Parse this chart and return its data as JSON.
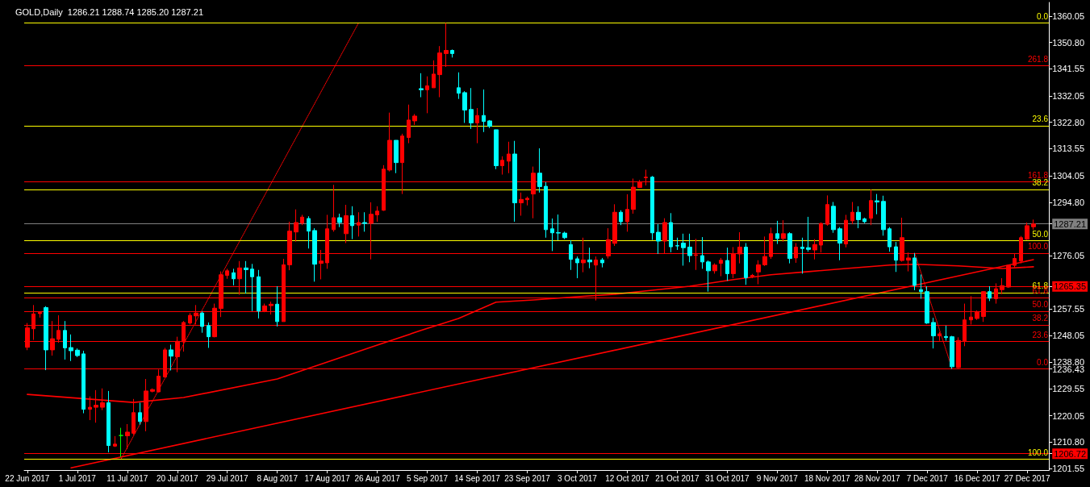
{
  "chart_data": {
    "type": "candlestick",
    "title": "GOLD,Daily  1286.21 1288.74 1285.20 1287.21",
    "categories": [
      "22 Jun 2017",
      null,
      null,
      null,
      null,
      null,
      null,
      null,
      "1 Jul 2017",
      null,
      null,
      null,
      null,
      null,
      null,
      null,
      "11 Jul 2017",
      null,
      null,
      null,
      null,
      null,
      null,
      null,
      "20 Jul 2017",
      null,
      null,
      null,
      null,
      null,
      null,
      null,
      "29 Jul 2017",
      null,
      null,
      null,
      null,
      null,
      null,
      null,
      "8 Aug 2017",
      null,
      null,
      null,
      null,
      null,
      null,
      null,
      "17 Aug 2017",
      null,
      null,
      null,
      null,
      null,
      null,
      null,
      "26 Aug 2017",
      null,
      null,
      null,
      null,
      null,
      null,
      null,
      "5 Sep 2017",
      null,
      null,
      null,
      null,
      null,
      null,
      null,
      "14 Sep 2017",
      null,
      null,
      null,
      null,
      null,
      null,
      null,
      "23 Sep 2017",
      null,
      null,
      null,
      null,
      null,
      null,
      null,
      "3 Oct 2017",
      null,
      null,
      null,
      null,
      null,
      null,
      null,
      "12 Oct 2017",
      null,
      null,
      null,
      null,
      null,
      null,
      null,
      "21 Oct 2017",
      null,
      null,
      null,
      null,
      null,
      null,
      null,
      "31 Oct 2017",
      null,
      null,
      null,
      null,
      null,
      null,
      null,
      "9 Nov 2017",
      null,
      null,
      null,
      null,
      null,
      null,
      null,
      "18 Nov 2017",
      null,
      null,
      null,
      null,
      null,
      null,
      null,
      "28 Nov 2017",
      null,
      null,
      null,
      null,
      null,
      null,
      null,
      "7 Dec 2017",
      null,
      null,
      null,
      null,
      null,
      null,
      null,
      "16 Dec 2017",
      null,
      null,
      null,
      null,
      null,
      null,
      null,
      "27 Dec 2017",
      null
    ],
    "ohlc": [
      [
        1244.0,
        1252.5,
        1243.0,
        1250.8
      ],
      [
        1250.5,
        1258.8,
        1246.6,
        1255.7
      ],
      [
        1255.8,
        1256.6,
        1254.4,
        1256.2
      ],
      [
        1257.9,
        1258.4,
        1236.0,
        1243.1
      ],
      [
        1243.1,
        1253.2,
        1241.1,
        1247.0
      ],
      [
        1246.8,
        1255.2,
        1245.6,
        1249.9
      ],
      [
        1249.9,
        1253.2,
        1239.7,
        1243.8
      ],
      [
        1243.9,
        1248.5,
        1239.2,
        1242.8
      ],
      [
        1243.0,
        1243.6,
        1240.6,
        1241.1
      ],
      [
        1241.7,
        1242.8,
        1220.9,
        1222.3
      ],
      [
        1222.3,
        1226.8,
        1218.5,
        1223.0
      ],
      [
        1223.0,
        1229.0,
        1217.6,
        1223.7
      ],
      [
        1223.0,
        1229.6,
        1222.0,
        1224.6
      ],
      [
        1224.6,
        1228.7,
        1207.2,
        1209.6
      ],
      [
        1209.4,
        1212.9,
        1209.1,
        1210.1
      ],
      [
        1213.1,
        1215.8,
        1205.6,
        1213.1
      ],
      [
        1213.0,
        1217.1,
        1208.3,
        1214.3
      ],
      [
        1213.9,
        1225.9,
        1213.3,
        1221.1
      ],
      [
        1221.1,
        1224.6,
        1216.9,
        1218.0
      ],
      [
        1218.0,
        1232.9,
        1214.6,
        1228.7
      ],
      [
        1228.6,
        1229.6,
        1228.2,
        1229.2
      ],
      [
        1228.4,
        1236.2,
        1228.2,
        1233.9
      ],
      [
        1233.6,
        1243.8,
        1233.4,
        1243.1
      ],
      [
        1243.1,
        1244.9,
        1235.9,
        1240.9
      ],
      [
        1240.7,
        1247.7,
        1235.3,
        1246.1
      ],
      [
        1245.9,
        1253.2,
        1242.5,
        1252.7
      ],
      [
        1252.5,
        1256.0,
        1252.0,
        1255.2
      ],
      [
        1255.0,
        1258.8,
        1252.0,
        1256.0
      ],
      [
        1256.0,
        1256.6,
        1249.1,
        1251.3
      ],
      [
        1251.6,
        1252.7,
        1243.8,
        1247.7
      ],
      [
        1247.7,
        1259.3,
        1247.5,
        1257.7
      ],
      [
        1257.6,
        1270.6,
        1254.6,
        1269.4
      ],
      [
        1269.2,
        1271.5,
        1268.0,
        1270.8
      ],
      [
        1270.1,
        1271.5,
        1265.7,
        1268.0
      ],
      [
        1268.0,
        1274.2,
        1262.4,
        1271.8
      ],
      [
        1271.8,
        1274.2,
        1262.8,
        1271.2
      ],
      [
        1271.4,
        1273.2,
        1256.7,
        1268.7
      ],
      [
        1268.7,
        1271.1,
        1254.1,
        1256.7
      ],
      [
        1256.7,
        1259.3,
        1256.3,
        1258.5
      ],
      [
        1258.6,
        1260.0,
        1255.5,
        1259.1
      ],
      [
        1259.1,
        1265.4,
        1251.3,
        1253.0
      ],
      [
        1253.0,
        1275.0,
        1253.0,
        1272.9
      ],
      [
        1272.9,
        1288.0,
        1271.0,
        1284.7
      ],
      [
        1284.4,
        1292.3,
        1281.0,
        1287.7
      ],
      [
        1287.5,
        1290.4,
        1286.8,
        1289.6
      ],
      [
        1289.1,
        1289.9,
        1278.6,
        1284.7
      ],
      [
        1284.9,
        1285.7,
        1267.0,
        1273.1
      ],
      [
        1273.4,
        1278.1,
        1267.8,
        1274.2
      ],
      [
        1273.6,
        1290.4,
        1271.5,
        1285.5
      ],
      [
        1285.2,
        1300.9,
        1284.5,
        1289.4
      ],
      [
        1289.4,
        1290.8,
        1286.1,
        1287.7
      ],
      [
        1283.8,
        1293.9,
        1280.5,
        1290.1
      ],
      [
        1290.1,
        1293.4,
        1281.9,
        1286.6
      ],
      [
        1286.8,
        1291.3,
        1282.8,
        1287.7
      ],
      [
        1287.7,
        1291.3,
        1284.5,
        1287.4
      ],
      [
        1287.4,
        1294.8,
        1274.8,
        1290.6
      ],
      [
        1290.4,
        1293.4,
        1288.0,
        1291.7
      ],
      [
        1292.0,
        1307.8,
        1291.8,
        1306.4
      ],
      [
        1306.1,
        1326.2,
        1305.6,
        1316.5
      ],
      [
        1316.5,
        1316.5,
        1305.0,
        1308.7
      ],
      [
        1308.7,
        1318.8,
        1297.7,
        1318.0
      ],
      [
        1317.5,
        1329.0,
        1315.5,
        1323.6
      ],
      [
        1323.3,
        1325.7,
        1321.9,
        1325.0
      ],
      [
        1334.6,
        1340.0,
        1331.6,
        1334.2
      ],
      [
        1334.2,
        1338.9,
        1326.0,
        1335.6
      ],
      [
        1334.9,
        1344.5,
        1334.9,
        1339.7
      ],
      [
        1339.5,
        1349.5,
        1331.6,
        1347.1
      ],
      [
        1346.9,
        1357.6,
        1342.2,
        1348.0
      ],
      [
        1348.0,
        1348.3,
        1345.5,
        1346.9
      ],
      [
        1334.9,
        1340.3,
        1331.0,
        1333.0
      ],
      [
        1333.2,
        1333.7,
        1322.6,
        1327.1
      ],
      [
        1327.3,
        1334.8,
        1320.5,
        1322.6
      ],
      [
        1322.6,
        1327.8,
        1315.5,
        1325.2
      ],
      [
        1325.2,
        1334.3,
        1319.4,
        1323.1
      ],
      [
        1323.3,
        1323.6,
        1320.8,
        1321.4
      ],
      [
        1320.2,
        1320.2,
        1306.4,
        1307.6
      ],
      [
        1307.6,
        1310.9,
        1304.5,
        1309.5
      ],
      [
        1309.2,
        1316.0,
        1305.0,
        1311.7
      ],
      [
        1311.7,
        1316.3,
        1288.0,
        1294.6
      ],
      [
        1294.6,
        1298.2,
        1290.1,
        1295.8
      ],
      [
        1295.7,
        1296.8,
        1293.7,
        1296.2
      ],
      [
        1297.7,
        1307.3,
        1289.2,
        1305.0
      ],
      [
        1305.0,
        1313.7,
        1298.2,
        1300.3
      ],
      [
        1300.4,
        1301.9,
        1282.4,
        1285.2
      ],
      [
        1285.5,
        1289.1,
        1277.7,
        1284.1
      ],
      [
        1284.2,
        1290.5,
        1281.5,
        1284.0
      ],
      [
        1284.0,
        1284.5,
        1281.9,
        1282.4
      ],
      [
        1280.0,
        1281.5,
        1271.1,
        1274.8
      ],
      [
        1275.0,
        1275.8,
        1268.2,
        1273.6
      ],
      [
        1273.6,
        1282.4,
        1270.3,
        1274.6
      ],
      [
        1274.6,
        1278.9,
        1271.7,
        1273.9
      ],
      [
        1272.8,
        1275.8,
        1260.4,
        1274.6
      ],
      [
        1274.6,
        1275.3,
        1272.0,
        1273.6
      ],
      [
        1276.0,
        1285.7,
        1275.1,
        1281.7
      ],
      [
        1280.4,
        1294.1,
        1279.5,
        1291.3
      ],
      [
        1291.3,
        1292.0,
        1286.8,
        1288.0
      ],
      [
        1288.0,
        1297.6,
        1284.5,
        1292.3
      ],
      [
        1292.3,
        1303.1,
        1290.8,
        1300.1
      ],
      [
        1300.0,
        1302.6,
        1299.8,
        1301.9
      ],
      [
        1303.4,
        1306.2,
        1300.7,
        1303.6
      ],
      [
        1303.6,
        1304.0,
        1281.6,
        1284.1
      ],
      [
        1284.3,
        1287.1,
        1276.7,
        1281.2
      ],
      [
        1281.2,
        1289.2,
        1276.7,
        1287.7
      ],
      [
        1287.7,
        1291.0,
        1277.3,
        1279.2
      ],
      [
        1279.6,
        1282.4,
        1278.1,
        1279.5
      ],
      [
        1280.5,
        1283.8,
        1272.6,
        1278.9
      ],
      [
        1279.1,
        1283.8,
        1273.8,
        1276.1
      ],
      [
        1276.2,
        1282.0,
        1271.1,
        1276.4
      ],
      [
        1276.1,
        1282.6,
        1271.5,
        1273.9
      ],
      [
        1273.9,
        1274.4,
        1263.5,
        1270.8
      ],
      [
        1270.8,
        1273.4,
        1269.8,
        1272.8
      ],
      [
        1273.4,
        1275.3,
        1268.9,
        1274.5
      ],
      [
        1274.4,
        1278.9,
        1267.3,
        1269.8
      ],
      [
        1269.8,
        1279.1,
        1268.2,
        1276.7
      ],
      [
        1276.7,
        1284.3,
        1273.4,
        1279.1
      ],
      [
        1279.1,
        1280.5,
        1265.9,
        1268.4
      ],
      [
        1268.7,
        1269.7,
        1268.2,
        1269.2
      ],
      [
        1270.4,
        1274.5,
        1266.1,
        1272.9
      ],
      [
        1272.9,
        1282.8,
        1272.5,
        1275.8
      ],
      [
        1275.8,
        1285.9,
        1275.0,
        1283.8
      ],
      [
        1283.8,
        1288.3,
        1280.2,
        1282.1
      ],
      [
        1282.1,
        1288.5,
        1281.0,
        1283.8
      ],
      [
        1283.8,
        1284.3,
        1273.4,
        1275.1
      ],
      [
        1275.3,
        1280.5,
        1273.6,
        1279.1
      ],
      [
        1279.1,
        1282.4,
        1269.8,
        1278.6
      ],
      [
        1278.9,
        1289.7,
        1277.5,
        1278.3
      ],
      [
        1278.1,
        1281.9,
        1274.8,
        1280.0
      ],
      [
        1279.8,
        1287.7,
        1277.2,
        1287.4
      ],
      [
        1287.1,
        1297.2,
        1286.6,
        1294.0
      ],
      [
        1293.4,
        1294.9,
        1284.1,
        1285.2
      ],
      [
        1285.5,
        1286.1,
        1274.5,
        1280.5
      ],
      [
        1280.2,
        1290.4,
        1279.0,
        1288.5
      ],
      [
        1288.3,
        1294.9,
        1287.1,
        1291.3
      ],
      [
        1291.3,
        1293.4,
        1285.7,
        1288.7
      ],
      [
        1289.0,
        1289.4,
        1287.5,
        1288.0
      ],
      [
        1289.2,
        1299.3,
        1286.8,
        1295.4
      ],
      [
        1295.3,
        1297.7,
        1290.6,
        1294.9
      ],
      [
        1295.1,
        1297.1,
        1283.1,
        1285.2
      ],
      [
        1285.5,
        1286.1,
        1277.5,
        1279.2
      ],
      [
        1279.2,
        1280.9,
        1270.4,
        1274.5
      ],
      [
        1274.4,
        1289.4,
        1274.0,
        1282.4
      ],
      [
        1274.5,
        1277.2,
        1270.6,
        1275.3
      ],
      [
        1275.3,
        1277.0,
        1264.0,
        1265.7
      ],
      [
        1264.2,
        1269.5,
        1261.0,
        1263.5
      ],
      [
        1263.5,
        1265.4,
        1252.2,
        1252.5
      ],
      [
        1252.7,
        1254.3,
        1243.6,
        1248.0
      ],
      [
        1248.0,
        1249.4,
        1246.3,
        1248.7
      ],
      [
        1247.8,
        1251.6,
        1246.3,
        1247.4
      ],
      [
        1247.7,
        1248.0,
        1236.43,
        1237.2
      ],
      [
        1236.9,
        1247.5,
        1236.7,
        1246.4
      ],
      [
        1246.1,
        1259.3,
        1244.4,
        1253.6
      ],
      [
        1253.6,
        1261.9,
        1252.0,
        1254.6
      ],
      [
        1254.1,
        1256.9,
        1253.6,
        1256.5
      ],
      [
        1254.8,
        1263.7,
        1252.9,
        1263.5
      ],
      [
        1263.5,
        1265.4,
        1260.2,
        1261.2
      ],
      [
        1261.0,
        1266.4,
        1259.3,
        1264.5
      ],
      [
        1264.2,
        1268.2,
        1262.6,
        1265.6
      ],
      [
        1265.1,
        1272.9,
        1264.8,
        1272.7
      ],
      [
        1272.7,
        1276.7,
        1272.0,
        1275.1
      ],
      [
        1274.2,
        1283.0,
        1273.4,
        1282.4
      ],
      [
        1281.9,
        1287.7,
        1281.6,
        1286.6
      ],
      [
        1286.21,
        1288.74,
        1285.2,
        1287.21
      ]
    ],
    "colors": [
      "#ff0000",
      "#ff0000",
      "#ff0000",
      "#00ffff",
      "#ff0000",
      "#ff0000",
      "#00ffff",
      "#00ffff",
      "#00ffff",
      "#00ffff",
      "#ff0000",
      "#ff0000",
      "#ff0000",
      "#00ffff",
      "#ff0000",
      "#00ff00",
      "#ff0000",
      "#ff0000",
      "#00ffff",
      "#ff0000",
      "#ff0000",
      "#ff0000",
      "#ff0000",
      "#00ffff",
      "#ff0000",
      "#ff0000",
      "#ff0000",
      "#ff0000",
      "#00ffff",
      "#00ffff",
      "#ff0000",
      "#ff0000",
      "#ff0000",
      "#00ffff",
      "#ff0000",
      "#00ffff",
      "#00ffff",
      "#00ffff",
      "#ff0000",
      "#ff0000",
      "#00ffff",
      "#ff0000",
      "#ff0000",
      "#ff0000",
      "#ff0000",
      "#00ffff",
      "#00ffff",
      "#ff0000",
      "#ff0000",
      "#ff0000",
      "#00ffff",
      "#ff0000",
      "#00ffff",
      "#ff0000",
      "#00ffff",
      "#ff0000",
      "#ff0000",
      "#ff0000",
      "#ff0000",
      "#00ffff",
      "#ff0000",
      "#ff0000",
      "#ff0000",
      "#00ffff",
      "#ff0000",
      "#ff0000",
      "#ff0000",
      "#ff0000",
      "#00ffff",
      "#00ffff",
      "#00ffff",
      "#00ffff",
      "#ff0000",
      "#00ffff",
      "#00ffff",
      "#00ffff",
      "#ff0000",
      "#ff0000",
      "#00ffff",
      "#ff0000",
      "#ff0000",
      "#ff0000",
      "#00ffff",
      "#00ffff",
      "#00ffff",
      "#00ffff",
      "#00ffff",
      "#00ffff",
      "#00ffff",
      "#ff0000",
      "#00ffff",
      "#ff0000",
      "#00ffff",
      "#ff0000",
      "#ff0000",
      "#00ffff",
      "#ff0000",
      "#ff0000",
      "#ff0000",
      "#ff0000",
      "#00ffff",
      "#00ffff",
      "#ff0000",
      "#00ffff",
      "#00ffff",
      "#00ffff",
      "#00ffff",
      "#ff0000",
      "#00ffff",
      "#00ffff",
      "#ff0000",
      "#ff0000",
      "#00ffff",
      "#ff0000",
      "#ff0000",
      "#00ffff",
      "#ff0000",
      "#ff0000",
      "#ff0000",
      "#ff0000",
      "#00ffff",
      "#ff0000",
      "#00ffff",
      "#ff0000",
      "#00ffff",
      "#00ffff",
      "#ff0000",
      "#ff0000",
      "#ff0000",
      "#00ffff",
      "#00ffff",
      "#ff0000",
      "#ff0000",
      "#00ffff",
      "#00ffff",
      "#ff0000",
      "#00ffff",
      "#00ffff",
      "#00ffff",
      "#00ffff",
      "#ff0000",
      "#ff0000",
      "#00ffff",
      "#00ffff",
      "#00ffff",
      "#00ffff",
      "#ff0000",
      "#00ffff",
      "#00ffff",
      "#ff0000",
      "#ff0000",
      "#ff0000",
      "#ff0000",
      "#ff0000",
      "#00ffff",
      "#ff0000",
      "#ff0000",
      "#ff0000",
      "#ff0000",
      "#ff0000",
      "#ff0000",
      "#ff0000"
    ],
    "series": [
      {
        "type": "line",
        "color": "#ff0000",
        "line_style": "solid",
        "values": [
          1227.5,
          null,
          null,
          null,
          null,
          null,
          null,
          null,
          null,
          null,
          null,
          null,
          null,
          null,
          null,
          null,
          null,
          1224.7,
          null,
          null,
          null,
          null,
          null,
          null,
          null,
          1226.4,
          null,
          null,
          null,
          null,
          null,
          null,
          null,
          null,
          null,
          null,
          null,
          null,
          null,
          null,
          1232.9,
          null,
          null,
          null,
          null,
          null,
          null,
          null,
          null,
          null,
          null,
          null,
          null,
          null,
          null,
          null,
          1244.8,
          null,
          null,
          null,
          null,
          null,
          null,
          1249.9,
          null,
          null,
          null,
          null,
          null,
          1254.1,
          null,
          null,
          null,
          null,
          null,
          1259.8,
          null,
          null,
          null,
          null,
          null,
          1260.6,
          null,
          null,
          null,
          null,
          null,
          null,
          1261.7,
          null,
          null,
          null,
          null,
          null,
          1262.6,
          null,
          null,
          null,
          null,
          null,
          1264.0,
          null,
          null,
          null,
          null,
          null,
          1265.4,
          null,
          null,
          null,
          null,
          null,
          null,
          1267.7,
          null,
          null,
          null,
          null,
          null,
          1269.4,
          null,
          null,
          null,
          null,
          null,
          1270.5,
          null,
          null,
          null,
          null,
          null,
          1271.6,
          null,
          null,
          null,
          null,
          null,
          null,
          1272.8,
          null,
          null,
          null,
          1273.1,
          null,
          null,
          null,
          null,
          null,
          null,
          1272.5,
          null,
          null,
          null,
          null,
          null,
          null,
          1271.6,
          null,
          null,
          null,
          null,
          1272.2
        ]
      },
      {
        "type": "line",
        "color": "#ff0000",
        "line_style": "solid",
        "values": [
          null,
          null,
          null,
          null,
          null,
          null,
          null,
          1201.8,
          null,
          null,
          null,
          null,
          null,
          null,
          null,
          null,
          null,
          null,
          null,
          null,
          null,
          null,
          null,
          null,
          null,
          null,
          null,
          null,
          null,
          null,
          null,
          null,
          null,
          null,
          null,
          null,
          null,
          null,
          null,
          null,
          null,
          null,
          null,
          null,
          null,
          null,
          null,
          null,
          null,
          null,
          null,
          null,
          null,
          null,
          null,
          null,
          null,
          null,
          null,
          null,
          null,
          null,
          null,
          null,
          null,
          null,
          null,
          null,
          null,
          null,
          null,
          null,
          null,
          null,
          null,
          null,
          null,
          null,
          null,
          null,
          null,
          null,
          null,
          null,
          null,
          null,
          null,
          null,
          null,
          null,
          null,
          null,
          null,
          null,
          null,
          null,
          null,
          null,
          null,
          null,
          null,
          null,
          null,
          null,
          null,
          null,
          null,
          null,
          null,
          null,
          null,
          null,
          null,
          null,
          null,
          null,
          null,
          null,
          null,
          null,
          null,
          null,
          null,
          null,
          null,
          null,
          null,
          null,
          null,
          null,
          null,
          null,
          null,
          null,
          null,
          null,
          null,
          null,
          null,
          null,
          null,
          null,
          null,
          null,
          null,
          null,
          null,
          null,
          null,
          null,
          null,
          null,
          null,
          null,
          null,
          null,
          null,
          null,
          null,
          null,
          null,
          1274.7
        ]
      },
      {
        "type": "line",
        "color": "#ff0000",
        "line_style": "dotted",
        "values": [
          null,
          null,
          null,
          null,
          null,
          null,
          null,
          null,
          null,
          null,
          null,
          null,
          null,
          null,
          null,
          1204.9,
          null,
          null,
          null,
          null,
          null,
          null,
          null,
          null,
          null,
          null,
          null,
          null,
          null,
          null,
          null,
          null,
          null,
          null,
          null,
          null,
          null,
          null,
          null,
          null,
          null,
          null,
          null,
          null,
          null,
          null,
          null,
          null,
          null,
          null,
          null,
          null,
          null,
          1357.6,
          null,
          null,
          null,
          null,
          null,
          null,
          null,
          null,
          null,
          null,
          null,
          null,
          null,
          null,
          null,
          null,
          null,
          null,
          null,
          null,
          null,
          null,
          null,
          null,
          null,
          null,
          null,
          null,
          null,
          null,
          null,
          null,
          null,
          null,
          null,
          null,
          null,
          null,
          null,
          null,
          null,
          null,
          null,
          null,
          null,
          null,
          null,
          null,
          null,
          null,
          null,
          null,
          null,
          null,
          null,
          null,
          null,
          null,
          null,
          null,
          null,
          null,
          null,
          null,
          null,
          null,
          null,
          null,
          null,
          null,
          null,
          null,
          null,
          null,
          null,
          null,
          null,
          null,
          null,
          null,
          null,
          null,
          null,
          null,
          null,
          null,
          null,
          null,
          null,
          null,
          null,
          null,
          null,
          null,
          null,
          null,
          null,
          null,
          null,
          null,
          null,
          null,
          null,
          null,
          null,
          null,
          null,
          null
        ]
      },
      {
        "type": "line",
        "color": "#ff0000",
        "line_style": "dotted",
        "values": [
          null,
          null,
          null,
          null,
          null,
          null,
          null,
          null,
          null,
          null,
          null,
          null,
          null,
          null,
          null,
          null,
          null,
          null,
          null,
          null,
          null,
          null,
          null,
          null,
          null,
          null,
          null,
          null,
          null,
          null,
          null,
          null,
          null,
          null,
          null,
          null,
          null,
          null,
          null,
          null,
          null,
          null,
          null,
          null,
          null,
          null,
          null,
          null,
          null,
          null,
          null,
          null,
          null,
          null,
          null,
          null,
          null,
          null,
          null,
          null,
          null,
          null,
          null,
          null,
          null,
          null,
          null,
          null,
          null,
          null,
          null,
          null,
          null,
          null,
          null,
          null,
          null,
          null,
          null,
          null,
          null,
          null,
          null,
          null,
          null,
          null,
          null,
          null,
          null,
          null,
          null,
          null,
          null,
          null,
          null,
          null,
          null,
          null,
          null,
          null,
          null,
          null,
          null,
          null,
          null,
          null,
          null,
          null,
          null,
          null,
          null,
          null,
          null,
          null,
          null,
          null,
          null,
          null,
          null,
          null,
          null,
          null,
          null,
          null,
          null,
          null,
          null,
          null,
          null,
          null,
          null,
          null,
          null,
          null,
          null,
          null,
          null,
          null,
          null,
          null,
          null,
          null,
          1277.0,
          null,
          null,
          null,
          null,
          null,
          1236.4,
          null,
          null,
          null,
          null,
          null,
          null,
          null,
          null,
          null,
          null,
          null,
          null,
          null
        ]
      }
    ],
    "marker": "none",
    "ylim": [
      1201.0,
      1364.8
    ],
    "yticks": [
      {
        "value": 1360.05,
        "label": "1360.05"
      },
      {
        "value": 1350.8,
        "label": "1350.80"
      },
      {
        "value": 1341.55,
        "label": "1341.55"
      },
      {
        "value": 1332.05,
        "label": "1332.05"
      },
      {
        "value": 1322.8,
        "label": "1322.80"
      },
      {
        "value": 1313.55,
        "label": "1313.55"
      },
      {
        "value": 1304.05,
        "label": "1304.05"
      },
      {
        "value": 1294.8,
        "label": "1294.80"
      },
      {
        "value": 1287.21,
        "label": "1287.21"
      },
      {
        "value": 1276.05,
        "label": "1276.05"
      },
      {
        "value": 1265.35,
        "label": "1265.35"
      },
      {
        "value": 1257.55,
        "label": "1257.55"
      },
      {
        "value": 1248.05,
        "label": "1248.05"
      },
      {
        "value": 1238.8,
        "label": "1238.80"
      },
      {
        "value": 1236.43,
        "label": "1236.43"
      },
      {
        "value": 1229.55,
        "label": "1229.55"
      },
      {
        "value": 1220.05,
        "label": "1220.05"
      },
      {
        "value": 1210.8,
        "label": "1210.80"
      },
      {
        "value": 1206.72,
        "label": "1206.72"
      },
      {
        "value": 1201.55,
        "label": "1201.55"
      }
    ],
    "annotations": [
      {
        "text": "0.0",
        "y": 1357.6
      },
      {
        "text": "23.6",
        "y": 1321.6
      },
      {
        "text": "38.2",
        "y": 1299.3
      },
      {
        "text": "50.0",
        "y": 1281.3
      },
      {
        "text": "61.8",
        "y": 1263.2
      },
      {
        "text": "100.0",
        "y": 1204.9
      },
      {
        "text": "261.8",
        "y": 1342.7
      },
      {
        "text": "161.8",
        "y": 1302.1
      },
      {
        "text": "100.0",
        "y": 1277.0
      },
      {
        "text": "61.8",
        "y": 1261.5
      },
      {
        "text": "50.0",
        "y": 1256.7
      },
      {
        "text": "38.2",
        "y": 1251.9
      },
      {
        "text": "23.6",
        "y": 1246.0
      },
      {
        "text": "0.0",
        "y": 1236.43
      }
    ],
    "ref_lines": [
      {
        "axis": "y",
        "value": 1357.6,
        "color": "#ffff00"
      },
      {
        "axis": "y",
        "value": 1321.6,
        "color": "#ffff00"
      },
      {
        "axis": "y",
        "value": 1299.3,
        "color": "#ffff00"
      },
      {
        "axis": "y",
        "value": 1281.3,
        "color": "#ffff00"
      },
      {
        "axis": "y",
        "value": 1263.2,
        "color": "#ffff00"
      },
      {
        "axis": "y",
        "value": 1204.9,
        "color": "#ffff00"
      },
      {
        "axis": "y",
        "value": 1342.7,
        "color": "#ff0000"
      },
      {
        "axis": "y",
        "value": 1302.1,
        "color": "#ff0000"
      },
      {
        "axis": "y",
        "value": 1277.0,
        "color": "#ff0000"
      },
      {
        "axis": "y",
        "value": 1261.5,
        "color": "#ff0000"
      },
      {
        "axis": "y",
        "value": 1256.7,
        "color": "#ff0000"
      },
      {
        "axis": "y",
        "value": 1251.9,
        "color": "#ff0000"
      },
      {
        "axis": "y",
        "value": 1246.0,
        "color": "#ff0000"
      },
      {
        "axis": "y",
        "value": 1236.43,
        "color": "#ff0000"
      },
      {
        "axis": "y",
        "value": 1287.21,
        "color": "#808080"
      },
      {
        "axis": "y",
        "value": 1265.35,
        "color": "#ff0000"
      },
      {
        "axis": "y",
        "value": 1206.72,
        "color": "#ff0000"
      }
    ]
  }
}
